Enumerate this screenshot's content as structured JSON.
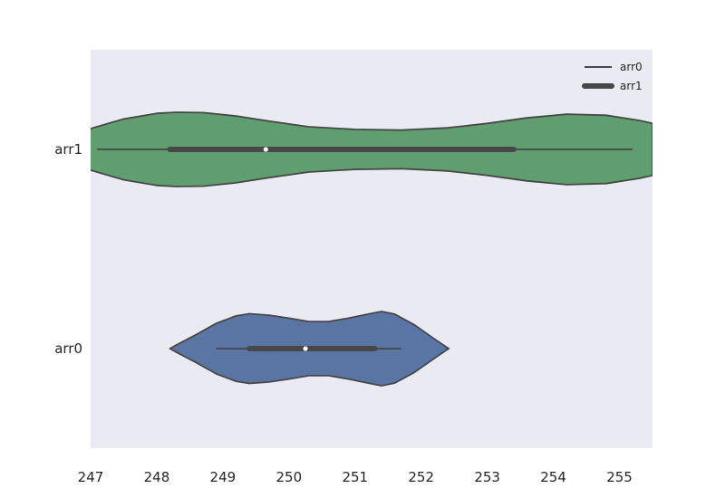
{
  "chart_data": {
    "type": "violin",
    "orientation": "horizontal",
    "categories": [
      "arr1",
      "arr0"
    ],
    "xlim": [
      247,
      255.5
    ],
    "xticks": [
      247,
      248,
      249,
      250,
      251,
      252,
      253,
      254,
      255
    ],
    "grid": false,
    "legend": {
      "placement": "top-right",
      "entries": [
        "arr0",
        "arr1"
      ]
    },
    "colors": {
      "arr1": "#5f9e6e",
      "arr0": "#5975a4",
      "plot_bg": "#eaeaf2",
      "stroke": "#474747"
    },
    "series": [
      {
        "category": "arr1",
        "whisker": [
          247.1,
          255.2
        ],
        "box": [
          248.2,
          253.4
        ],
        "median": 249.65,
        "density": [
          [
            246.8,
            0.42
          ],
          [
            247.0,
            0.56
          ],
          [
            247.5,
            0.82
          ],
          [
            248.0,
            0.97
          ],
          [
            248.3,
            1.0
          ],
          [
            248.7,
            0.99
          ],
          [
            249.2,
            0.9
          ],
          [
            249.7,
            0.76
          ],
          [
            250.3,
            0.61
          ],
          [
            251.0,
            0.54
          ],
          [
            251.7,
            0.52
          ],
          [
            252.4,
            0.58
          ],
          [
            253.0,
            0.7
          ],
          [
            253.6,
            0.85
          ],
          [
            254.2,
            0.95
          ],
          [
            254.8,
            0.92
          ],
          [
            255.3,
            0.78
          ],
          [
            255.5,
            0.7
          ]
        ]
      },
      {
        "category": "arr0",
        "whisker": [
          248.9,
          251.7
        ],
        "box": [
          249.4,
          251.3
        ],
        "median": 250.25,
        "density": [
          [
            248.2,
            0.0
          ],
          [
            248.3,
            0.1
          ],
          [
            248.6,
            0.38
          ],
          [
            248.9,
            0.68
          ],
          [
            249.2,
            0.88
          ],
          [
            249.4,
            0.94
          ],
          [
            249.7,
            0.9
          ],
          [
            250.0,
            0.82
          ],
          [
            250.3,
            0.73
          ],
          [
            250.6,
            0.73
          ],
          [
            250.9,
            0.82
          ],
          [
            251.2,
            0.93
          ],
          [
            251.4,
            1.0
          ],
          [
            251.6,
            0.93
          ],
          [
            251.9,
            0.64
          ],
          [
            252.2,
            0.26
          ],
          [
            252.4,
            0.02
          ],
          [
            252.42,
            0.0
          ]
        ]
      }
    ]
  }
}
